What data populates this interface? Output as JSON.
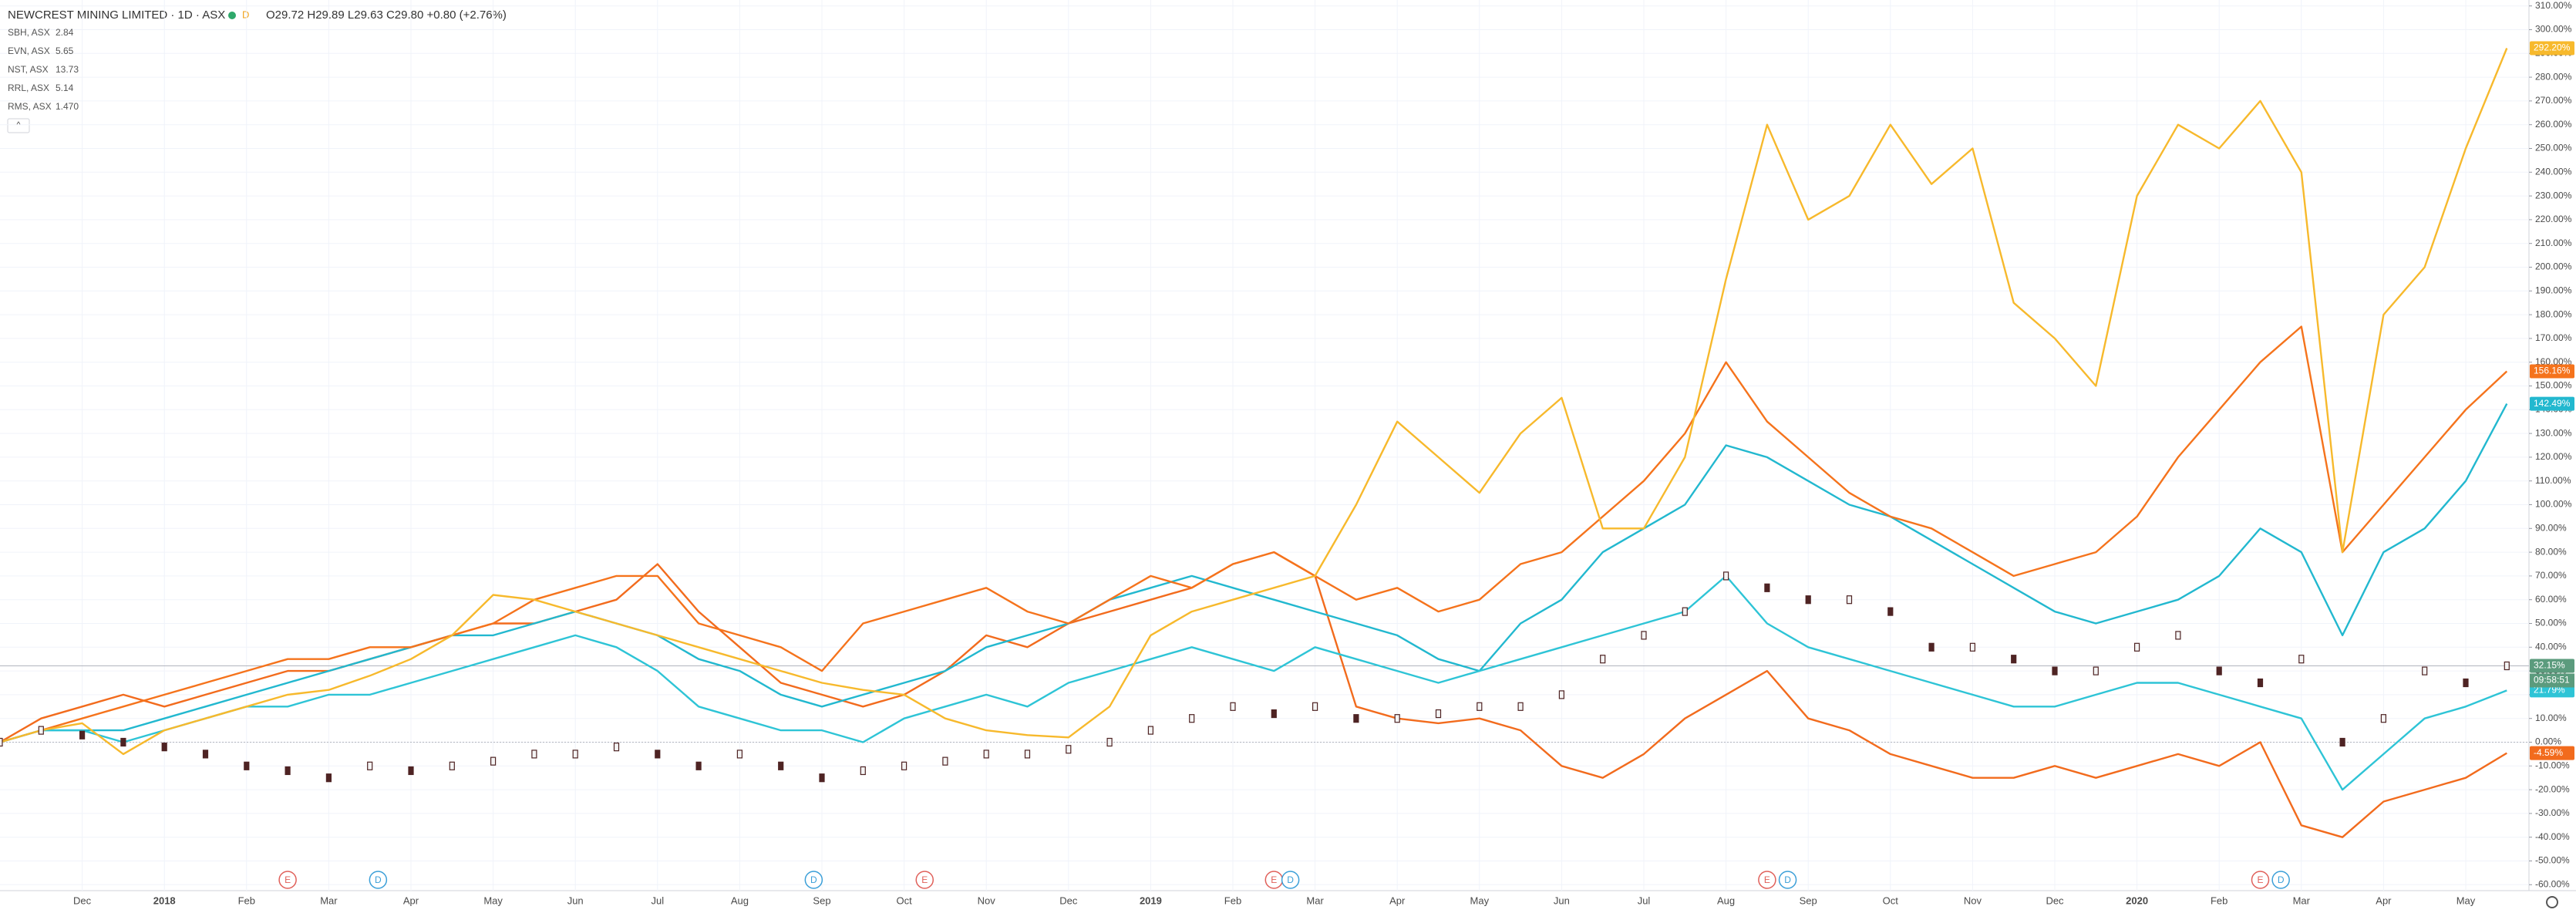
{
  "chart_data": {
    "type": "line",
    "title": "NEWCREST MINING LIMITED · 1D · ASX",
    "ohlc_text": "O29.72 H29.89 L29.63 C29.80 +0.80 (+2.76%)",
    "countdown": "09:58:51",
    "categories": [
      null,
      null,
      "Dec",
      null,
      "2018",
      null,
      "Feb",
      null,
      "Mar",
      null,
      "Apr",
      null,
      "May",
      null,
      "Jun",
      null,
      "Jul",
      null,
      "Aug",
      null,
      "Sep",
      null,
      "Oct",
      null,
      "Nov",
      null,
      "Dec",
      null,
      "2019",
      null,
      "Feb",
      null,
      "Mar",
      null,
      "Apr",
      null,
      "May",
      null,
      "Jun",
      null,
      "Jul",
      null,
      "Aug",
      null,
      "Sep",
      null,
      "Oct",
      null,
      "Nov",
      null,
      "Dec",
      null,
      "2020",
      null,
      "Feb",
      null,
      "Mar",
      null,
      "Apr",
      null,
      "May",
      null
    ],
    "ylim": [
      -62.5,
      312.5
    ],
    "yticks": [
      {
        "value": 310,
        "label": "310.00%"
      },
      {
        "value": 300,
        "label": "300.00%"
      },
      {
        "value": 290,
        "label": "290.00%"
      },
      {
        "value": 280,
        "label": "280.00%"
      },
      {
        "value": 270,
        "label": "270.00%"
      },
      {
        "value": 260,
        "label": "260.00%"
      },
      {
        "value": 250,
        "label": "250.00%"
      },
      {
        "value": 240,
        "label": "240.00%"
      },
      {
        "value": 230,
        "label": "230.00%"
      },
      {
        "value": 220,
        "label": "220.00%"
      },
      {
        "value": 210,
        "label": "210.00%"
      },
      {
        "value": 200,
        "label": "200.00%"
      },
      {
        "value": 190,
        "label": "190.00%"
      },
      {
        "value": 180,
        "label": "180.00%"
      },
      {
        "value": 170,
        "label": "170.00%"
      },
      {
        "value": 160,
        "label": "160.00%"
      },
      {
        "value": 150,
        "label": "150.00%"
      },
      {
        "value": 140,
        "label": "140.00%"
      },
      {
        "value": 130,
        "label": "130.00%"
      },
      {
        "value": 120,
        "label": "120.00%"
      },
      {
        "value": 110,
        "label": "110.00%"
      },
      {
        "value": 100,
        "label": "100.00%"
      },
      {
        "value": 90,
        "label": "90.00%"
      },
      {
        "value": 80,
        "label": "80.00%"
      },
      {
        "value": 70,
        "label": "70.00%"
      },
      {
        "value": 60,
        "label": "60.00%"
      },
      {
        "value": 50,
        "label": "50.00%"
      },
      {
        "value": 40,
        "label": "40.00%"
      },
      {
        "value": 30,
        "label": "30.00%"
      },
      {
        "value": 20,
        "label": "20.00%"
      },
      {
        "value": 10,
        "label": "10.00%"
      },
      {
        "value": 0,
        "label": "0.00%"
      },
      {
        "value": -10,
        "label": "-10.00%"
      },
      {
        "value": -20,
        "label": "-20.00%"
      },
      {
        "value": -30,
        "label": "-30.00%"
      },
      {
        "value": -40,
        "label": "-40.00%"
      },
      {
        "value": -50,
        "label": "-50.00%"
      },
      {
        "value": -60,
        "label": "-60.00%"
      }
    ],
    "grid": true,
    "main": {
      "color": "#4e2323",
      "last_label": "32.15%",
      "label_color": "#5b9b7d",
      "values": [
        0,
        5,
        3,
        0,
        -2,
        -5,
        -10,
        -12,
        -15,
        -10,
        -12,
        -10,
        -8,
        -5,
        -5,
        -2,
        -5,
        -10,
        -5,
        -10,
        -15,
        -12,
        -10,
        -8,
        -5,
        -5,
        -3,
        0,
        5,
        10,
        15,
        12,
        15,
        10,
        10,
        12,
        15,
        15,
        20,
        35,
        45,
        55,
        70,
        65,
        60,
        60,
        55,
        40,
        40,
        35,
        30,
        30,
        40,
        45,
        30,
        25,
        35,
        0,
        10,
        30,
        25,
        32.15
      ]
    },
    "series": [
      {
        "name": "SBH, ASX",
        "price": "2.84",
        "color": "#f26b1d",
        "last_label": "-4.59%",
        "values": [
          0,
          10,
          15,
          20,
          15,
          20,
          25,
          30,
          30,
          35,
          40,
          45,
          50,
          50,
          55,
          60,
          75,
          55,
          40,
          25,
          20,
          15,
          20,
          30,
          45,
          40,
          50,
          55,
          60,
          65,
          75,
          80,
          70,
          15,
          10,
          8,
          10,
          5,
          -10,
          -15,
          -5,
          10,
          20,
          30,
          10,
          5,
          -5,
          -10,
          -15,
          -15,
          -10,
          -15,
          -10,
          -5,
          -10,
          0,
          -35,
          -40,
          -25,
          -20,
          -15,
          -4.59
        ]
      },
      {
        "name": "EVN, ASX",
        "price": "5.65",
        "color": "#22b8cf",
        "last_label": "142.49%",
        "values": [
          0,
          5,
          5,
          5,
          10,
          15,
          20,
          25,
          30,
          35,
          40,
          45,
          45,
          50,
          55,
          50,
          45,
          35,
          30,
          20,
          15,
          20,
          25,
          30,
          40,
          45,
          50,
          60,
          65,
          70,
          65,
          60,
          55,
          50,
          45,
          35,
          30,
          50,
          60,
          80,
          90,
          100,
          125,
          120,
          110,
          100,
          95,
          85,
          75,
          65,
          55,
          50,
          55,
          60,
          70,
          90,
          80,
          45,
          80,
          90,
          110,
          142.49
        ]
      },
      {
        "name": "NST, ASX",
        "price": "13.73",
        "color": "#f5731c",
        "last_label": "156.16%",
        "values": [
          0,
          5,
          10,
          15,
          20,
          25,
          30,
          35,
          35,
          40,
          40,
          45,
          50,
          60,
          65,
          70,
          70,
          50,
          45,
          40,
          30,
          50,
          55,
          60,
          65,
          55,
          50,
          60,
          70,
          65,
          75,
          80,
          70,
          60,
          65,
          55,
          60,
          75,
          80,
          95,
          110,
          130,
          160,
          135,
          120,
          105,
          95,
          90,
          80,
          70,
          75,
          80,
          95,
          120,
          140,
          160,
          175,
          80,
          100,
          120,
          140,
          156.16
        ]
      },
      {
        "name": "RRL, ASX",
        "price": "5.14",
        "color": "#2ec4d6",
        "last_label": "21.79%",
        "values": [
          0,
          5,
          5,
          0,
          5,
          10,
          15,
          15,
          20,
          20,
          25,
          30,
          35,
          40,
          45,
          40,
          30,
          15,
          10,
          5,
          5,
          0,
          10,
          15,
          20,
          15,
          25,
          30,
          35,
          40,
          35,
          30,
          40,
          35,
          30,
          25,
          30,
          35,
          40,
          45,
          50,
          55,
          70,
          50,
          40,
          35,
          30,
          25,
          20,
          15,
          15,
          20,
          25,
          25,
          20,
          15,
          10,
          -20,
          -5,
          10,
          15,
          21.79
        ]
      },
      {
        "name": "RMS, ASX",
        "price": "1.470",
        "color": "#f7b92c",
        "last_label": "292.20%",
        "values": [
          0,
          5,
          8,
          -5,
          5,
          10,
          15,
          20,
          22,
          28,
          35,
          45,
          62,
          60,
          55,
          50,
          45,
          40,
          35,
          30,
          25,
          22,
          20,
          10,
          5,
          3,
          2,
          15,
          45,
          55,
          60,
          65,
          70,
          100,
          135,
          120,
          105,
          130,
          145,
          90,
          90,
          120,
          195,
          260,
          220,
          230,
          260,
          235,
          250,
          185,
          170,
          150,
          230,
          260,
          250,
          270,
          240,
          80,
          180,
          200,
          250,
          292.2
        ]
      }
    ],
    "events": [
      {
        "label": "E",
        "at": 7
      },
      {
        "label": "D",
        "at": 9.2
      },
      {
        "label": "D",
        "at": 19.8
      },
      {
        "label": "E",
        "at": 22.5
      },
      {
        "label": "E",
        "at": 31
      },
      {
        "label": "D",
        "at": 31.4
      },
      {
        "label": "E",
        "at": 43
      },
      {
        "label": "D",
        "at": 43.5
      },
      {
        "label": "E",
        "at": 55
      },
      {
        "label": "D",
        "at": 55.5
      }
    ]
  }
}
